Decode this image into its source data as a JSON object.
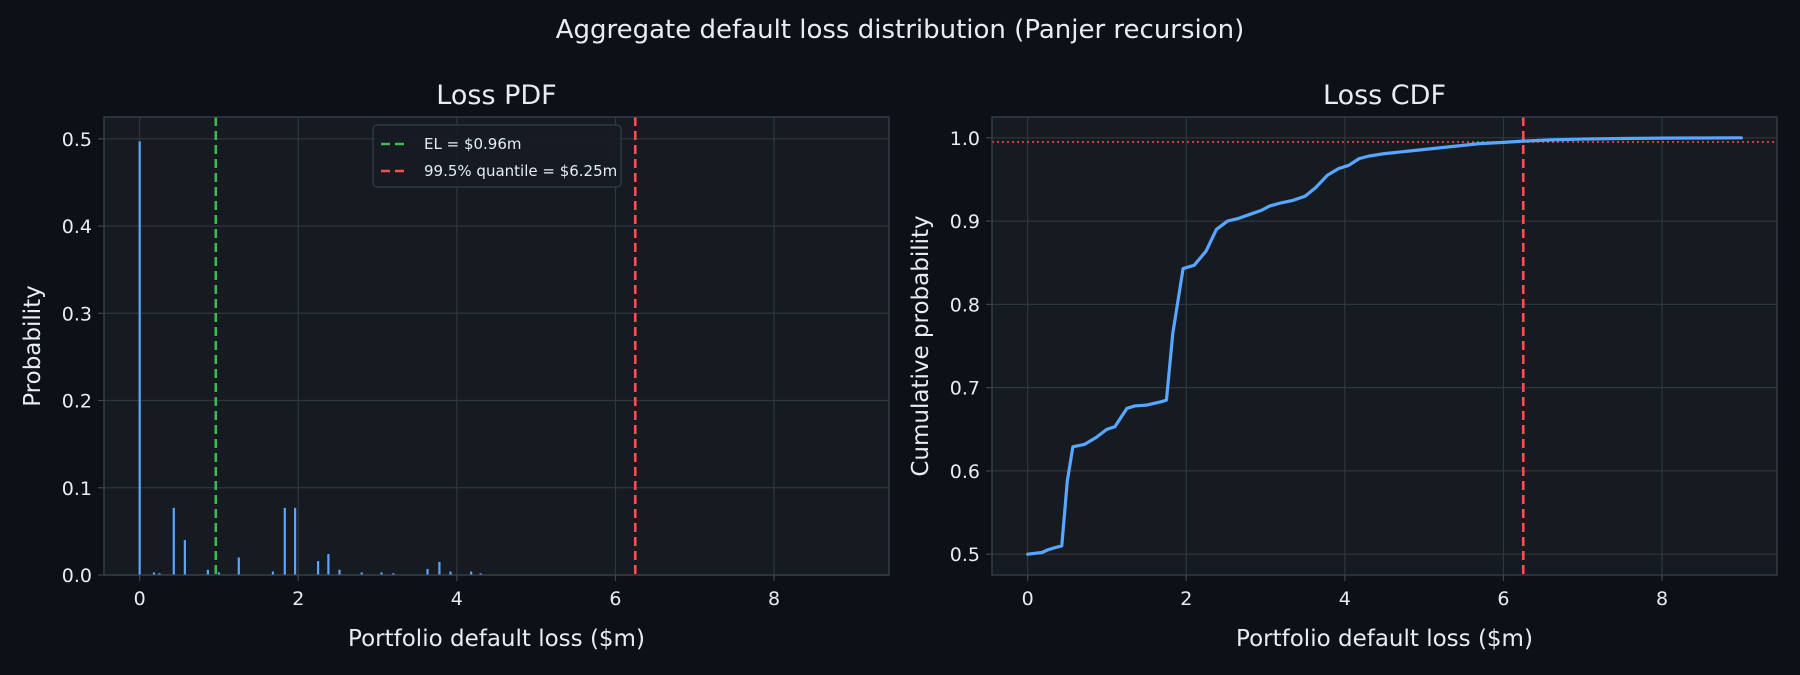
{
  "figure": {
    "title": "Aggregate default loss distribution (Panjer recursion)"
  },
  "colors": {
    "background": "#0d1117",
    "axes_bg": "#161b22",
    "grid": "#30363d",
    "spine": "#3d444d",
    "text": "#e6edf3",
    "series": "#58a6ff",
    "el_line": "#3fb950",
    "var_line": "#f85149"
  },
  "chart_data": [
    {
      "type": "bar",
      "title": "Loss PDF",
      "xlabel": "Portfolio default loss ($m)",
      "ylabel": "Probability",
      "xlim": [
        -0.45,
        9.45
      ],
      "ylim": [
        0,
        0.525
      ],
      "xticks": [
        0,
        2,
        4,
        6,
        8
      ],
      "yticks": [
        0.0,
        0.1,
        0.2,
        0.3,
        0.4,
        0.5
      ],
      "ytick_labels": [
        "0.0",
        "0.1",
        "0.2",
        "0.3",
        "0.4",
        "0.5"
      ],
      "grid": true,
      "legend": {
        "location": "upper center",
        "entries": [
          {
            "label": "EL = $0.96m",
            "style": "dashed",
            "color": "#3fb950"
          },
          {
            "label": "99.5% quantile = $6.25m",
            "style": "dashed",
            "color": "#f85149"
          }
        ]
      },
      "vlines": [
        {
          "x": 0.96,
          "color": "#3fb950",
          "style": "dashed"
        },
        {
          "x": 6.25,
          "color": "#f85149",
          "style": "dashed"
        }
      ],
      "x": [
        0.0,
        0.18,
        0.25,
        0.43,
        0.57,
        0.86,
        1.0,
        1.25,
        1.68,
        1.83,
        1.96,
        2.25,
        2.38,
        2.52,
        2.8,
        3.05,
        3.2,
        3.63,
        3.78,
        3.92,
        4.18,
        4.3
      ],
      "values": [
        0.497,
        0.003,
        0.002,
        0.077,
        0.04,
        0.006,
        0.003,
        0.02,
        0.004,
        0.077,
        0.077,
        0.016,
        0.024,
        0.006,
        0.003,
        0.003,
        0.002,
        0.007,
        0.015,
        0.004,
        0.004,
        0.002
      ]
    },
    {
      "type": "line",
      "title": "Loss CDF",
      "xlabel": "Portfolio default loss ($m)",
      "ylabel": "Cumulative probability",
      "xlim": [
        -0.45,
        9.45
      ],
      "ylim": [
        0.475,
        1.025
      ],
      "xticks": [
        0,
        2,
        4,
        6,
        8
      ],
      "yticks": [
        0.5,
        0.6,
        0.7,
        0.8,
        0.9,
        1.0
      ],
      "ytick_labels": [
        "0.5",
        "0.6",
        "0.7",
        "0.8",
        "0.9",
        "1.0"
      ],
      "grid": true,
      "hlines": [
        {
          "y": 0.995,
          "color": "#f85149",
          "style": "dotted"
        }
      ],
      "vlines": [
        {
          "x": 6.25,
          "color": "#f85149",
          "style": "dashed"
        }
      ],
      "x": [
        0.0,
        0.18,
        0.25,
        0.35,
        0.43,
        0.5,
        0.57,
        0.72,
        0.86,
        1.0,
        1.1,
        1.25,
        1.35,
        1.5,
        1.68,
        1.75,
        1.83,
        1.96,
        2.1,
        2.25,
        2.38,
        2.52,
        2.65,
        2.8,
        2.95,
        3.05,
        3.2,
        3.35,
        3.5,
        3.63,
        3.78,
        3.92,
        4.05,
        4.18,
        4.3,
        4.5,
        4.8,
        5.1,
        5.4,
        5.7,
        6.0,
        6.25,
        6.6,
        7.0,
        7.5,
        8.0,
        8.5,
        9.0
      ],
      "y": [
        0.5,
        0.502,
        0.505,
        0.508,
        0.51,
        0.588,
        0.629,
        0.632,
        0.64,
        0.65,
        0.653,
        0.675,
        0.678,
        0.679,
        0.683,
        0.685,
        0.765,
        0.843,
        0.847,
        0.864,
        0.89,
        0.9,
        0.903,
        0.908,
        0.913,
        0.918,
        0.922,
        0.925,
        0.93,
        0.94,
        0.955,
        0.963,
        0.967,
        0.975,
        0.978,
        0.981,
        0.984,
        0.987,
        0.99,
        0.993,
        0.9945,
        0.996,
        0.9975,
        0.9985,
        0.9992,
        0.9996,
        0.9998,
        1.0
      ]
    }
  ]
}
